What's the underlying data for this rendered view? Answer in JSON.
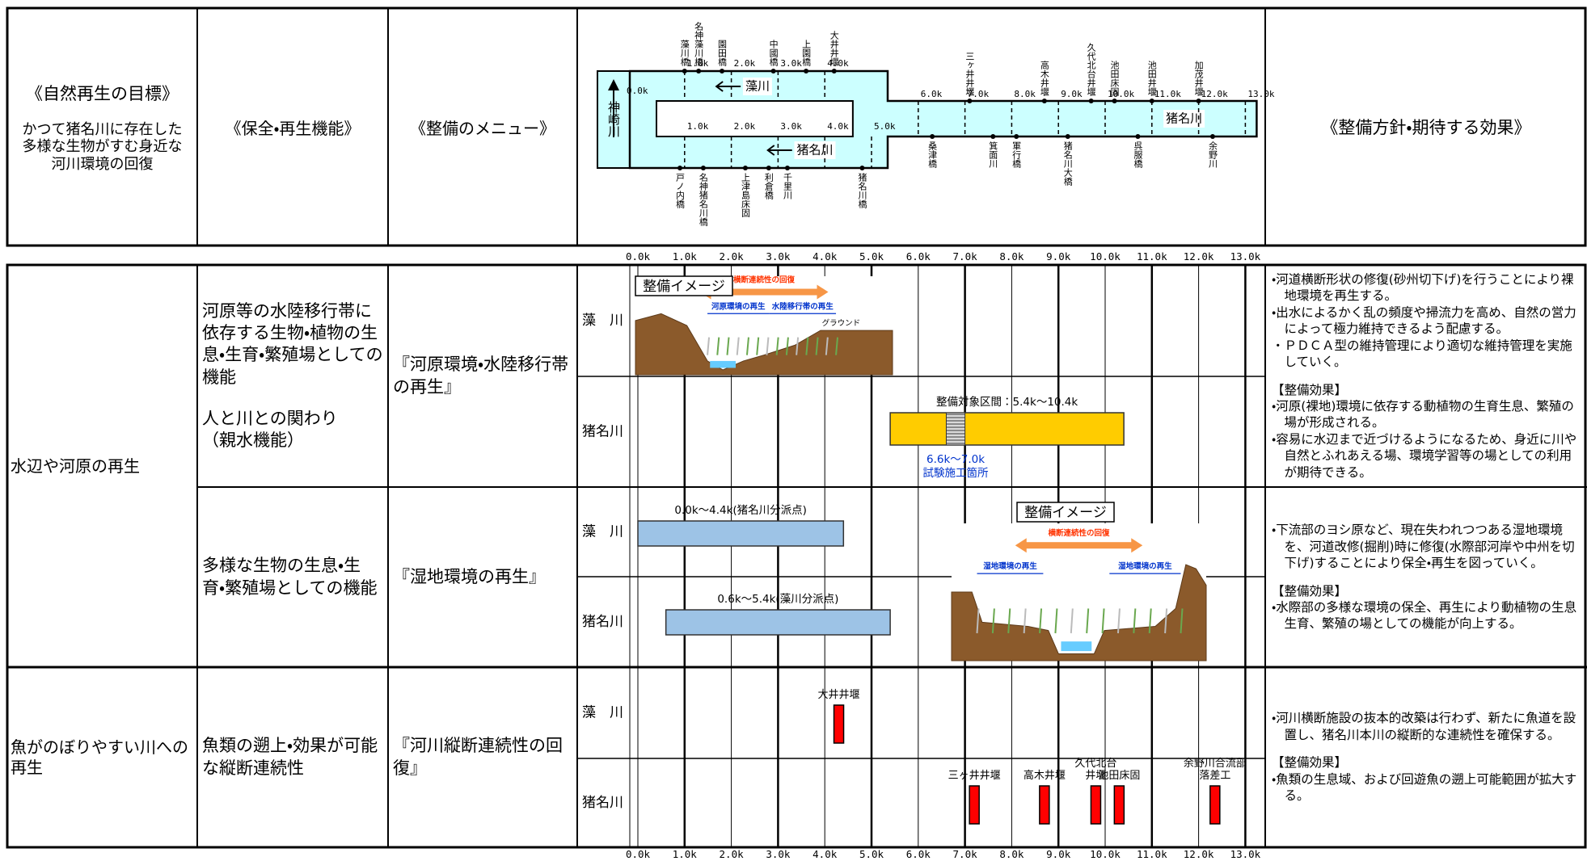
{
  "header": {
    "goal_title": "《自然再生の目標》",
    "goal_text": "かつて猪名川に存在した多様な生物がすむ身近な河川環境の回復",
    "function_title": "《保全・再生機能》",
    "menu_title": "《整備のメニュー》",
    "policy_title": "《整備方針・期待する効果》"
  },
  "map": {
    "river_names": {
      "kanzaki": "神崎川",
      "mo": "藻川",
      "ina_lower": "猪名川",
      "ina_main": "猪名川"
    },
    "km_start": {
      "value": 0,
      "label": "0.0k"
    },
    "km_upper": [
      {
        "value": 1,
        "label": "1.0k"
      },
      {
        "value": 2,
        "label": "2.0k"
      },
      {
        "value": 3,
        "label": "3.0k"
      },
      {
        "value": 4,
        "label": "4.0k"
      }
    ],
    "km_lower": [
      {
        "value": 1,
        "label": "1.0k"
      },
      {
        "value": 2,
        "label": "2.0k"
      },
      {
        "value": 3,
        "label": "3.0k"
      },
      {
        "value": 4,
        "label": "4.0k"
      },
      {
        "value": 5,
        "label": "5.0k"
      }
    ],
    "km_main": [
      {
        "value": 6,
        "label": "6.0k"
      },
      {
        "value": 7,
        "label": "7.0k"
      },
      {
        "value": 8,
        "label": "8.0k"
      },
      {
        "value": 9,
        "label": "9.0k"
      },
      {
        "value": 10,
        "label": "10.0k"
      },
      {
        "value": 11,
        "label": "11.0k"
      },
      {
        "value": 12,
        "label": "12.0k"
      },
      {
        "value": 13,
        "label": "13.0k"
      }
    ],
    "labels_above": [
      {
        "text": "藻川橋",
        "km": 1.0
      },
      {
        "text": "名神藻川橋",
        "km": 1.3
      },
      {
        "text": "園田橋",
        "km": 1.8
      },
      {
        "text": "中國橋",
        "km": 2.9
      },
      {
        "text": "上園橋",
        "km": 3.6
      },
      {
        "text": "大井井堰",
        "km": 4.2
      },
      {
        "text": "三ヶ井井堰",
        "km": 7.1
      },
      {
        "text": "高木井堰",
        "km": 8.7
      },
      {
        "text": "久代北台井堰",
        "km": 9.7
      },
      {
        "text": "池田床固",
        "km": 10.2
      },
      {
        "text": "池田井堰",
        "km": 11.0
      },
      {
        "text": "加茂井堰",
        "km": 12.0
      }
    ],
    "labels_below": [
      {
        "text": "戸ノ内橋",
        "km": 0.9
      },
      {
        "text": "名神猪名川橋",
        "km": 1.4
      },
      {
        "text": "上津島床固",
        "km": 2.3
      },
      {
        "text": "利倉橋",
        "km": 2.8
      },
      {
        "text": "千里川",
        "km": 3.2
      },
      {
        "text": "猪名川橋",
        "km": 4.8
      },
      {
        "text": "桑津橋",
        "km": 6.3
      },
      {
        "text": "箕面川",
        "km": 7.6
      },
      {
        "text": "軍行橋",
        "km": 8.1
      },
      {
        "text": "猪名川大橋",
        "km": 9.2
      },
      {
        "text": "呉服橋",
        "km": 10.7
      },
      {
        "text": "余野川",
        "km": 12.3
      }
    ]
  },
  "axis": {
    "ticks": [
      {
        "value": 0,
        "label": "0.0k"
      },
      {
        "value": 1,
        "label": "1.0k"
      },
      {
        "value": 2,
        "label": "2.0k"
      },
      {
        "value": 3,
        "label": "3.0k"
      },
      {
        "value": 4,
        "label": "4.0k"
      },
      {
        "value": 5,
        "label": "5.0k"
      },
      {
        "value": 6,
        "label": "6.0k"
      },
      {
        "value": 7,
        "label": "7.0k"
      },
      {
        "value": 8,
        "label": "8.0k"
      },
      {
        "value": 9,
        "label": "9.0k"
      },
      {
        "value": 10,
        "label": "10.0k"
      },
      {
        "value": 11,
        "label": "11.0k"
      },
      {
        "value": 12,
        "label": "12.0k"
      },
      {
        "value": 13,
        "label": "13.0k"
      }
    ]
  },
  "row_names": {
    "mo": "藻　川",
    "ina": "猪名川"
  },
  "groups": [
    {
      "goal": "水辺や河原の再生",
      "sections": [
        {
          "function": [
            "河原等の水陸移行帯に依存する生物・植物の生息・生育・繁殖場としての機能",
            "人と川との関わり",
            "（親水機能）"
          ],
          "menu": "『河原環境・水陸移行帯の再生』",
          "image": {
            "title": "整備イメージ",
            "arrow": "横断連続性の回復",
            "labels": [
              "河原環境の再生",
              "水陸移行帯の再生"
            ],
            "note": "グラウンド"
          },
          "mo": {},
          "ina": {
            "bars": [
              {
                "start": 5.4,
                "end": 10.4,
                "label": "整備対象区間：5.4k～10.4k",
                "color": "#ffcc00"
              }
            ],
            "test_section": {
              "start": 6.6,
              "end": 7.0,
              "label": [
                "6.6k～7.0k",
                "試験施工箇所"
              ]
            }
          },
          "policy": [
            "・河道横断形状の修復(砂州切下げ)を行うことにより裸地環境を再生する。",
            "・出水によるかく乱の頻度や掃流力を高め、自然の営力によって極力維持できるよう配慮する。",
            "・ＰＤＣＡ型の維持管理により適切な維持管理を実施していく。",
            "【整備効果】",
            "・河原(裸地)環境に依存する動植物の生育生息、繁殖の場が形成される。",
            "・容易に水辺まで近づけるようになるため、身近に川や自然とふれあえる場、環境学習等の場としての利用が期待できる。"
          ]
        },
        {
          "function": [
            "多様な生物の生息・生育・繁殖場としての機能"
          ],
          "menu": "『湿地環境の再生』",
          "image": {
            "title": "整備イメージ",
            "arrow": "横断連続性の回復",
            "labels": [
              "湿地環境の再生",
              "湿地環境の再生"
            ]
          },
          "mo": {
            "bars": [
              {
                "start": 0.0,
                "end": 4.4,
                "label": "0.0k～4.4k(猪名川分派点)",
                "color": "#9dc3e6"
              }
            ]
          },
          "ina": {
            "bars": [
              {
                "start": 0.6,
                "end": 5.4,
                "label": "0.6k～5.4k(藻川分派点)",
                "color": "#9dc3e6"
              }
            ]
          },
          "policy": [
            "・下流部のヨシ原など、現在失われつつある湿地環境を、河道改修(掘削)時に修復(水際部河岸や中州を切下げ)することにより保全・再生を図っていく。",
            "【整備効果】",
            "・水際部の多様な環境の保全、再生により動植物の生息生育、繁殖の場としての機能が向上する。"
          ]
        }
      ]
    },
    {
      "goal": "魚がのぼりやすい川への再生",
      "sections": [
        {
          "function": [
            "魚類の遡上・効果が可能な縦断連続性"
          ],
          "menu": "『河川縦断連続性の回復』",
          "mo": {
            "weirs": [
              {
                "km": 4.3,
                "label": [
                  "大井井堰"
                ]
              }
            ]
          },
          "ina": {
            "weirs": [
              {
                "km": 7.2,
                "label": [
                  "三ヶ井井堰"
                ]
              },
              {
                "km": 8.7,
                "label": [
                  "高木井堰"
                ]
              },
              {
                "km": 9.8,
                "label": [
                  "久代北台",
                  "井堰"
                ]
              },
              {
                "km": 10.3,
                "label": [
                  "池田床固"
                ]
              },
              {
                "km": 12.35,
                "label": [
                  "余野川合流部",
                  "落差工"
                ]
              }
            ]
          },
          "weir_color": "#ff0000",
          "policy": [
            "・河川横断施設の抜本的改築は行わず、新たに魚道を設置し、猪名川本川の縦断的な連続性を確保する。",
            "【整備効果】",
            "・魚類の生息域、および回遊魚の遡上可能範囲が拡大する。"
          ]
        }
      ]
    }
  ]
}
